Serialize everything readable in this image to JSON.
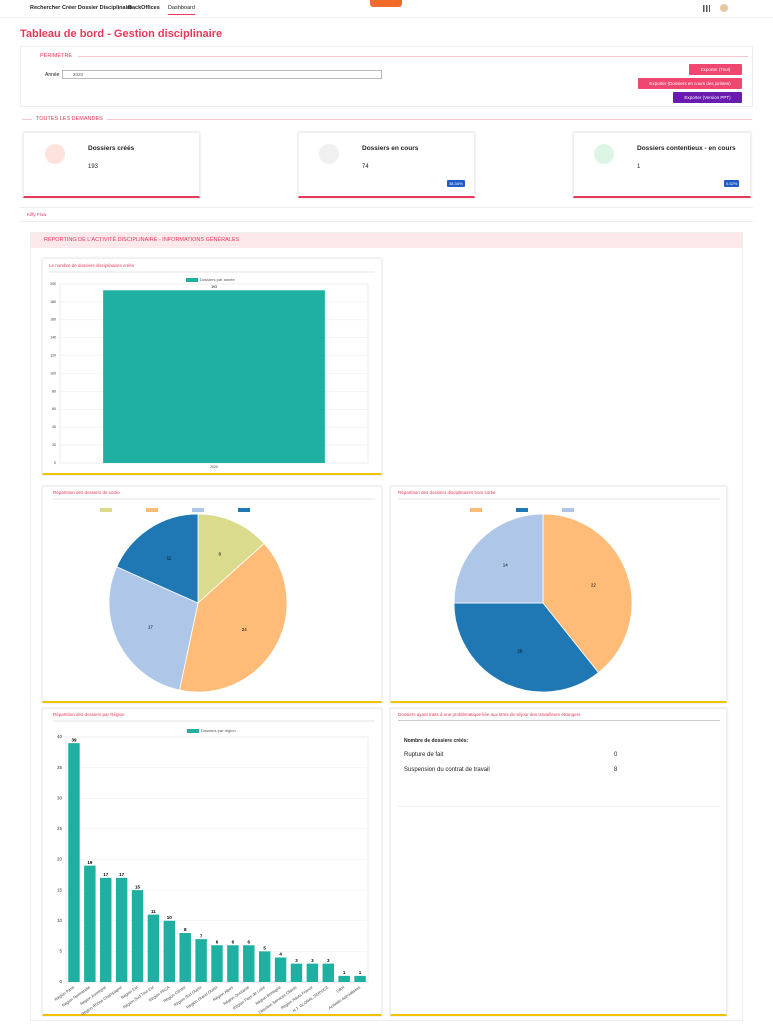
{
  "nav": {
    "items": [
      "Rechercher",
      "Créer Dossier Disciplinaire",
      "BackOffices",
      "Dashboard"
    ]
  },
  "title": "Tableau de bord - Gestion disciplinaire",
  "perimetre": {
    "title": "PÉRIMÈTRE",
    "label": "Année",
    "value": "2020",
    "buttons": [
      "Exporter (Tout)",
      "Exporter (Dossiers en cours des juristes)",
      "Exporter (Version PPT)"
    ]
  },
  "demandes": {
    "title": "TOUTES LES DEMANDES",
    "cards": [
      {
        "label": "Dossiers créés",
        "value": 193
      },
      {
        "label": "Dossiers en cours",
        "value": 74,
        "badge": "38.34%"
      },
      {
        "label": "Dossiers contentieux - en cours",
        "value": 1,
        "badge": "0.52%"
      }
    ]
  },
  "flow": "Kiffy Flow",
  "reporting": {
    "title": "REPORTING DE L'ACTIVITÉ DISCIPLINAIRE - INFORMATIONS GÉNÉRALES"
  },
  "chart_data": [
    {
      "type": "bar",
      "title": "Le nombre de dossiers disciplinaires créés",
      "categories": [
        "2020"
      ],
      "series": [
        {
          "name": "Dossiers par année",
          "color": "#20b0a2",
          "values": [
            193
          ]
        }
      ],
      "ylim": [
        0,
        200
      ],
      "yticks": [
        0,
        20,
        40,
        60,
        80,
        100,
        120,
        140,
        160,
        180,
        200
      ],
      "grid": true
    },
    {
      "type": "pie",
      "title": "Répartition des dossiers de sortie",
      "values": [
        8,
        24,
        17,
        11
      ],
      "colors": [
        "#dbdb8d",
        "#ffbb78",
        "#aec7e8",
        "#1f77b4"
      ]
    },
    {
      "type": "pie",
      "title": "Répartition des dossiers disciplinaires hors sortie",
      "values": [
        22,
        20,
        14
      ],
      "colors": [
        "#ffbb78",
        "#1f77b4",
        "#aec7e8"
      ]
    },
    {
      "type": "bar",
      "title": "Répartition des dossiers par Région",
      "categories": [
        "Région Paris",
        "Région Normandie",
        "Région Auvergne",
        "Région Rhône Champagne",
        "Région Est",
        "Région Sud Tout Est",
        "Région PACA",
        "Région Centre",
        "Région Sud Ouest",
        "Région Grand Ouest",
        "Région Alpes",
        "Région Occitanie",
        "Région Pays de Loire",
        "Région Bretagne",
        "Direction Services Clients",
        "Région Hauts France",
        "H.T. GLOBAL SERVICE",
        "DRH",
        "Activités spécialisées"
      ],
      "series": [
        {
          "name": "Dossiers par région",
          "color": "#20b0a2",
          "values": [
            39,
            19,
            17,
            17,
            15,
            11,
            10,
            8,
            7,
            6,
            6,
            6,
            5,
            4,
            3,
            3,
            3,
            1,
            1
          ]
        }
      ],
      "ylim": [
        0,
        40
      ],
      "yticks": [
        0,
        5,
        10,
        15,
        20,
        25,
        30,
        35,
        40
      ],
      "grid": true
    }
  ],
  "table": {
    "title": "Dossiers ayant traits à une problématique liée aux titres de séjour des travailleurs étrangers",
    "header": "Nombre de dossiers créés:",
    "rows": [
      [
        "Rupture de fait",
        0
      ],
      [
        "Suspension du contrat de travail",
        8
      ]
    ]
  }
}
